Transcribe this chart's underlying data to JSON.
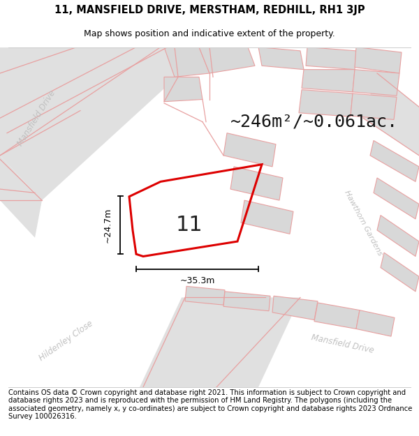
{
  "title_line1": "11, MANSFIELD DRIVE, MERSTHAM, REDHILL, RH1 3JP",
  "title_line2": "Map shows position and indicative extent of the property.",
  "footer_text": "Contains OS data © Crown copyright and database right 2021. This information is subject to Crown copyright and database rights 2023 and is reproduced with the permission of HM Land Registry. The polygons (including the associated geometry, namely x, y co-ordinates) are subject to Crown copyright and database rights 2023 Ordnance Survey 100026316.",
  "area_label": "~246m²/~0.061ac.",
  "property_number": "11",
  "dim_vertical": "~24.7m",
  "dim_horizontal": "~35.3m",
  "map_bg": "#ffffff",
  "road_fill": "#e0e0e0",
  "road_outline": "#e8a0a0",
  "building_fill": "#d8d8d8",
  "building_outline": "#e8a0a0",
  "property_edge": "#dd0000",
  "street_label_color": "#c0c0c0",
  "title_fontsize": 10.5,
  "subtitle_fontsize": 9,
  "footer_fontsize": 7.2,
  "area_fontsize": 18,
  "number_fontsize": 22,
  "dim_fontsize": 9
}
